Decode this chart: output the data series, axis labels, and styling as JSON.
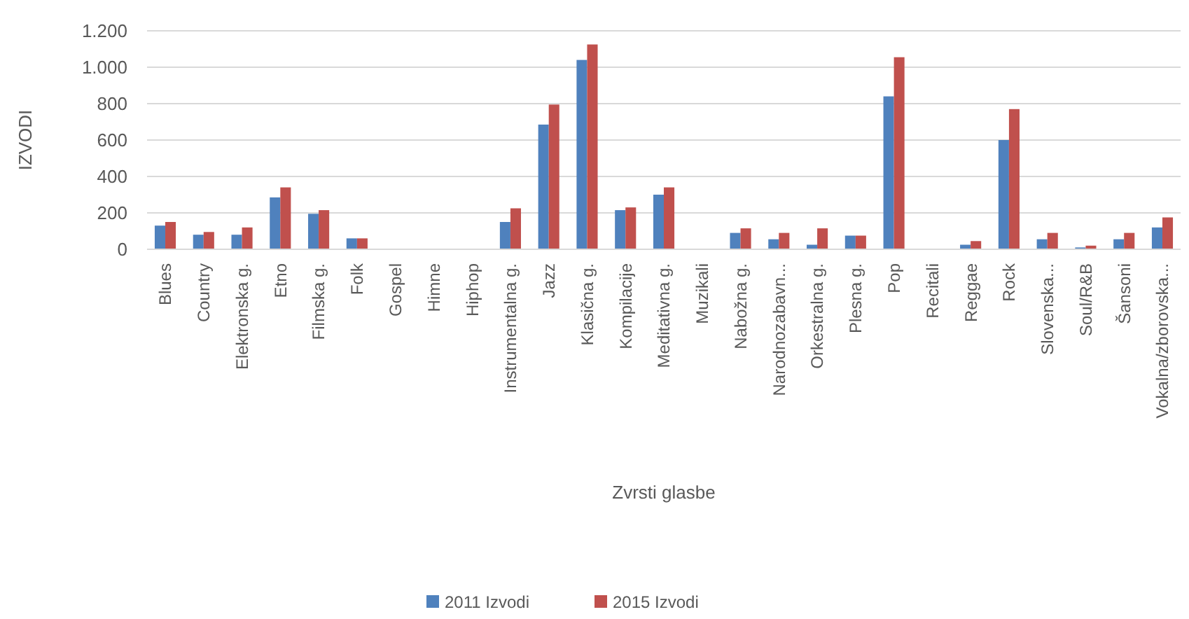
{
  "chart_data": {
    "type": "bar",
    "xlabel": "Zvrsti glasbe",
    "ylabel": "IZVODI",
    "categories": [
      "Blues",
      "Country",
      "Elektronska g.",
      "Etno",
      "Filmska g.",
      "Folk",
      "Gospel",
      "Himne",
      "Hiphop",
      "Instrumentalna g.",
      "Jazz",
      "Klasična g.",
      "Kompilacije",
      "Meditativna g.",
      "Muzikali",
      "Nabožna g.",
      "Narodnozabavn...",
      "Orkestralna g.",
      "Plesna g.",
      "Pop",
      "Recitali",
      "Reggae",
      "Rock",
      "Slovenska...",
      "Soul/R&B",
      "Šansoni",
      "Vokalna/zborovska..."
    ],
    "series": [
      {
        "name": "2011 Izvodi",
        "color": "#4f81bd",
        "values": [
          130,
          80,
          80,
          285,
          195,
          60,
          0,
          0,
          0,
          150,
          685,
          1040,
          215,
          300,
          0,
          90,
          55,
          25,
          75,
          840,
          0,
          25,
          600,
          55,
          10,
          55,
          120
        ]
      },
      {
        "name": "2015 Izvodi",
        "color": "#c0504d",
        "values": [
          150,
          95,
          120,
          340,
          215,
          60,
          0,
          0,
          0,
          225,
          795,
          1125,
          230,
          340,
          0,
          115,
          90,
          115,
          75,
          1055,
          0,
          45,
          770,
          90,
          20,
          90,
          175
        ]
      }
    ],
    "ylim": [
      0,
      1200
    ],
    "yticks": [
      {
        "value": 0,
        "label": "0"
      },
      {
        "value": 200,
        "label": "200"
      },
      {
        "value": 400,
        "label": "400"
      },
      {
        "value": 600,
        "label": "600"
      },
      {
        "value": 800,
        "label": "800"
      },
      {
        "value": 1000,
        "label": "1.000"
      },
      {
        "value": 1200,
        "label": "1.200"
      }
    ],
    "grid": "y",
    "legend": "bottom"
  }
}
